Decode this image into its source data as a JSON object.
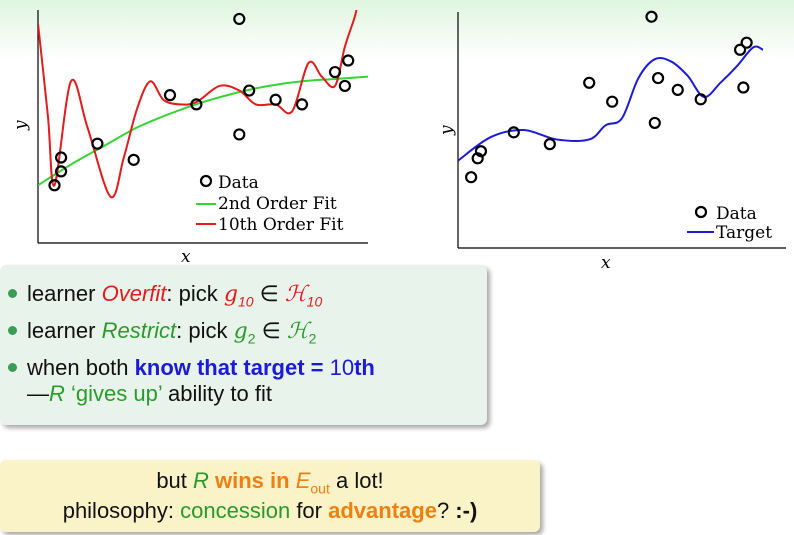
{
  "chart_data": [
    {
      "type": "scatter",
      "xlabel": "x",
      "ylabel": "y",
      "legend": [
        "Data",
        "2nd Order Fit",
        "10th Order Fit"
      ],
      "legend_placement": "bottom-right",
      "grid": false,
      "series": [
        {
          "name": "Data",
          "type": "scatter",
          "x": [
            0.05,
            0.07,
            0.07,
            0.18,
            0.29,
            0.4,
            0.48,
            0.61,
            0.64,
            0.72,
            0.8,
            0.9,
            0.93,
            0.94,
            0.61
          ],
          "y": [
            0.25,
            0.31,
            0.37,
            0.43,
            0.36,
            0.64,
            0.6,
            0.97,
            0.66,
            0.62,
            0.6,
            0.74,
            0.68,
            0.79,
            0.47
          ]
        },
        {
          "name": "2nd Order Fit",
          "type": "line",
          "x": [
            0.0,
            0.1,
            0.2,
            0.3,
            0.4,
            0.5,
            0.6,
            0.7,
            0.8,
            0.9,
            1.0
          ],
          "y": [
            0.25,
            0.34,
            0.42,
            0.5,
            0.56,
            0.61,
            0.65,
            0.68,
            0.7,
            0.71,
            0.72
          ]
        },
        {
          "name": "10th Order Fit",
          "type": "line",
          "x": [
            0.0,
            0.03,
            0.05,
            0.1,
            0.15,
            0.22,
            0.26,
            0.3,
            0.34,
            0.38,
            0.43,
            0.48,
            0.55,
            0.61,
            0.66,
            0.72,
            0.77,
            0.82,
            0.86,
            0.9,
            0.93,
            0.96,
            0.97
          ],
          "y": [
            0.95,
            0.55,
            0.25,
            0.7,
            0.5,
            0.2,
            0.37,
            0.58,
            0.7,
            0.62,
            0.6,
            0.61,
            0.68,
            0.66,
            0.6,
            0.6,
            0.57,
            0.78,
            0.72,
            0.68,
            0.85,
            0.98,
            1.05
          ]
        }
      ]
    },
    {
      "type": "scatter",
      "xlabel": "x",
      "ylabel": "y",
      "legend": [
        "Data",
        "Target"
      ],
      "legend_placement": "bottom-right",
      "grid": false,
      "series": [
        {
          "name": "Data",
          "type": "scatter",
          "x": [
            0.04,
            0.06,
            0.07,
            0.17,
            0.28,
            0.4,
            0.47,
            0.59,
            0.6,
            0.61,
            0.67,
            0.74,
            0.86,
            0.88,
            0.87
          ],
          "y": [
            0.3,
            0.38,
            0.41,
            0.49,
            0.44,
            0.7,
            0.62,
            0.98,
            0.53,
            0.72,
            0.67,
            0.63,
            0.84,
            0.87,
            0.68
          ]
        },
        {
          "name": "Target",
          "type": "line",
          "x": [
            0.0,
            0.1,
            0.2,
            0.3,
            0.4,
            0.45,
            0.5,
            0.55,
            0.6,
            0.65,
            0.7,
            0.75,
            0.8,
            0.85,
            0.9,
            0.93
          ],
          "y": [
            0.37,
            0.47,
            0.5,
            0.46,
            0.46,
            0.52,
            0.55,
            0.72,
            0.8,
            0.79,
            0.73,
            0.64,
            0.7,
            0.77,
            0.85,
            0.84
          ]
        }
      ]
    }
  ],
  "labels": {
    "x": "x",
    "y": "y",
    "data": "Data",
    "fit2": "2nd Order Fit",
    "fit10": "10th Order Fit",
    "target": "Target"
  },
  "bullets": {
    "b1_pre": "learner ",
    "b1_name": "Overfit",
    "b1_mid": ": pick ",
    "b1_g": "g",
    "b1_sub": "10",
    "b1_in": " ∈ ",
    "b1_H": "ℋ",
    "b1_Hsub": "10",
    "b2_pre": "learner ",
    "b2_name": "Restrict",
    "b2_mid": ": pick ",
    "b2_g": "g",
    "b2_sub": "2",
    "b2_in": " ∈ ",
    "b2_H": "ℋ",
    "b2_Hsub": "2",
    "b3_pre": "when both ",
    "b3_bold": "know that target = ",
    "b3_num": "10",
    "b3_th": "th",
    "b3_dash": "—",
    "b3_R": "R",
    "b3_gives": " ‘gives up’",
    "b3_rest": " ability to fit"
  },
  "conclusion": {
    "l1_pre": "but ",
    "l1_R": "R",
    "l1_wins": " wins in ",
    "l1_E": "E",
    "l1_Esub": "out",
    "l1_post": " a lot!",
    "l2_pre": "philosophy: ",
    "l2_concession": "concession",
    "l2_for": " for ",
    "l2_adv": "advantage",
    "l2_post": "? ",
    "l2_smiley": ":-)"
  },
  "colors": {
    "fit10": "#e41b1b",
    "fit2": "#33d633",
    "target": "#1a1ad8",
    "accent_green": "#2a9b2a",
    "accent_orange": "#f07f10",
    "accent_blue": "#1a1ad8"
  }
}
